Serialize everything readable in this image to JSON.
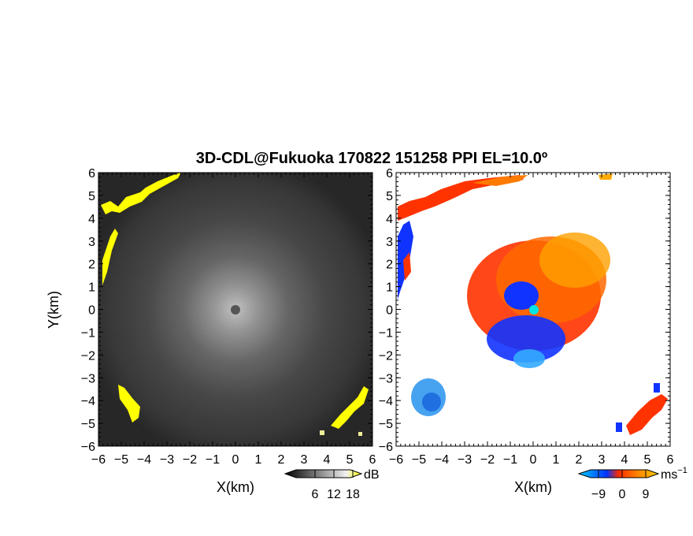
{
  "figure": {
    "title": "3D-CDL@Fukuoka 170822 151258 PPI EL=10.0º"
  },
  "chart_data": [
    {
      "type": "heatmap",
      "title": "",
      "xlabel": "X(km)",
      "ylabel": "Y(km)",
      "xlim": [
        -6,
        6
      ],
      "ylim": [
        -6,
        6
      ],
      "xticks": [
        "−6",
        "−5",
        "−4",
        "−3",
        "−2",
        "−1",
        "0",
        "1",
        "2",
        "3",
        "4",
        "5",
        "6"
      ],
      "yticks": [
        "6",
        "5",
        "4",
        "3",
        "2",
        "1",
        "0",
        "−1",
        "−2",
        "−3",
        "−4",
        "−5",
        "−6"
      ],
      "colorbar": {
        "label": "dB",
        "tick_labels": [
          "6",
          "12",
          "18"
        ],
        "ticks": [
          6,
          12,
          18
        ],
        "range": [
          0,
          21
        ],
        "colors": [
          "#000000",
          "#ffffff",
          "#ffff00"
        ]
      },
      "description_values": {
        "center": [
          0,
          0
        ],
        "max_range_km": 6
      }
    },
    {
      "type": "heatmap",
      "title": "",
      "xlabel": "X(km)",
      "ylabel": "",
      "xlim": [
        -6,
        6
      ],
      "ylim": [
        -6,
        6
      ],
      "xticks": [
        "−6",
        "−5",
        "−4",
        "−3",
        "−2",
        "−1",
        "0",
        "1",
        "2",
        "3",
        "4",
        "5",
        "6"
      ],
      "yticks": [
        "6",
        "5",
        "4",
        "3",
        "2",
        "1",
        "0",
        "−1",
        "−2",
        "−3",
        "−4",
        "−5",
        "−6"
      ],
      "colorbar": {
        "label": "ms",
        "label_superscript": "−1",
        "tick_labels": [
          "−9",
          "0",
          "9"
        ],
        "ticks": [
          -9,
          0,
          9
        ],
        "range": [
          -12,
          12
        ],
        "colors": [
          "#00ccff",
          "#0033ff",
          "#ff2a00",
          "#ff8800",
          "#ffcc00"
        ]
      }
    }
  ]
}
